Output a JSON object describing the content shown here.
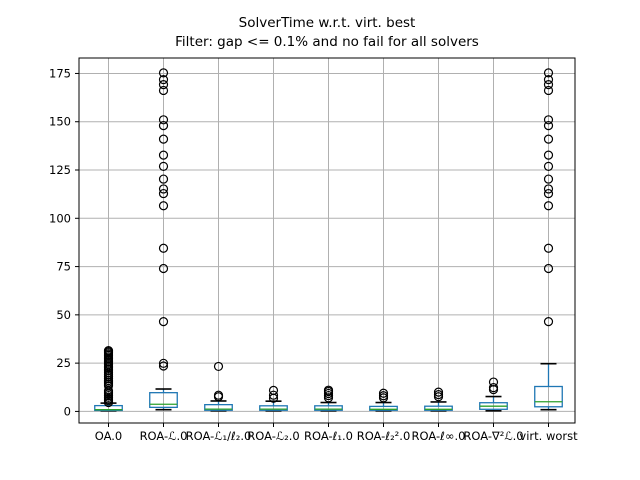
{
  "title": "SolverTime w.r.t. virt. best",
  "subtitle": "Filter: gap <= 0.1% and no fail for all solvers",
  "colors": {
    "background": "#ffffff",
    "box": "#1f77b4",
    "whisker": "#1f77b4",
    "median": "#2ca02c",
    "cap": "#000000",
    "flier": "#000000",
    "grid": "#b0b0b0",
    "spine": "#000000",
    "tick_label": "#000000"
  },
  "chart_data": {
    "type": "boxplot",
    "title": "SolverTime w.r.t. virt. best",
    "subtitle": "Filter: gap <= 0.1% and no fail for all solvers",
    "xlabel": "",
    "ylabel": "",
    "ylim": [
      -6,
      183
    ],
    "yticks": [
      0,
      25,
      50,
      75,
      100,
      125,
      150,
      175
    ],
    "grid": true,
    "legend": false,
    "categories": [
      "OA.0",
      "ROA-ℒ.0",
      "ROA-ℒ₁/ℓ₂.0",
      "ROA-ℒ₂.0",
      "ROA-ℓ₁.0",
      "ROA-ℓ₂².0",
      "ROA-ℓ∞.0",
      "ROA-∇²ℒ.0",
      "virt. worst"
    ],
    "series": [
      {
        "label": "OA.0",
        "whislo": 0.3,
        "q1": 0.5,
        "med": 0.9,
        "q3": 3.0,
        "whishi": 4.3,
        "fliers": [
          4.6,
          5.5,
          6.4,
          7.3,
          8.2,
          9.1,
          10.0,
          10.8,
          13.3,
          14.2,
          15.1,
          16.0,
          17.0,
          18.0,
          19.0,
          20.0,
          21.0,
          21.8,
          22.6,
          23.4,
          24.2,
          25.0,
          25.8,
          26.6,
          27.4,
          28.2,
          29.0,
          29.7,
          30.4,
          31.0,
          31.5
        ]
      },
      {
        "label": "ROA-ℒ.0",
        "whislo": 0.9,
        "q1": 2.1,
        "med": 3.7,
        "q3": 9.7,
        "whishi": 11.6,
        "fliers": [
          23.5,
          24.9,
          46.5,
          74.0,
          84.5,
          106.5,
          112.8,
          115.2,
          120.3,
          126.9,
          132.7,
          141.0,
          148.0,
          151.0,
          166.2,
          169.2,
          171.8,
          175.3
        ]
      },
      {
        "label": "ROA-ℒ₁/ℓ₂.0",
        "whislo": 0.3,
        "q1": 0.6,
        "med": 1.2,
        "q3": 3.5,
        "whishi": 5.4,
        "fliers": [
          7.6,
          8.4,
          23.3
        ]
      },
      {
        "label": "ROA-ℒ₂.0",
        "whislo": 0.3,
        "q1": 0.6,
        "med": 1.2,
        "q3": 2.9,
        "whishi": 5.3,
        "fliers": [
          6.8,
          8.4,
          10.9
        ]
      },
      {
        "label": "ROA-ℓ₁.0",
        "whislo": 0.3,
        "q1": 0.6,
        "med": 1.2,
        "q3": 2.9,
        "whishi": 4.6,
        "fliers": [
          7.0,
          8.2,
          9.3,
          10.3,
          11.0
        ]
      },
      {
        "label": "ROA-ℓ₂².0",
        "whislo": 0.3,
        "q1": 0.6,
        "med": 1.1,
        "q3": 2.6,
        "whishi": 4.6,
        "fliers": [
          7.0,
          8.1,
          9.4
        ]
      },
      {
        "label": "ROA-ℓ∞.0",
        "whislo": 0.3,
        "q1": 0.6,
        "med": 1.1,
        "q3": 2.7,
        "whishi": 4.9,
        "fliers": [
          7.6,
          8.7,
          10.0
        ]
      },
      {
        "label": "ROA-∇²ℒ.0",
        "whislo": 0.3,
        "q1": 1.1,
        "med": 2.7,
        "q3": 4.5,
        "whishi": 7.7,
        "fliers": [
          11.3,
          12.3,
          15.2
        ]
      },
      {
        "label": "virt. worst",
        "whislo": 0.9,
        "q1": 2.4,
        "med": 5.0,
        "q3": 12.9,
        "whishi": 24.7,
        "fliers": [
          46.5,
          74.0,
          84.5,
          106.5,
          112.8,
          115.2,
          120.3,
          126.9,
          132.7,
          141.0,
          148.0,
          151.0,
          166.2,
          169.2,
          171.8,
          175.3
        ]
      }
    ]
  }
}
